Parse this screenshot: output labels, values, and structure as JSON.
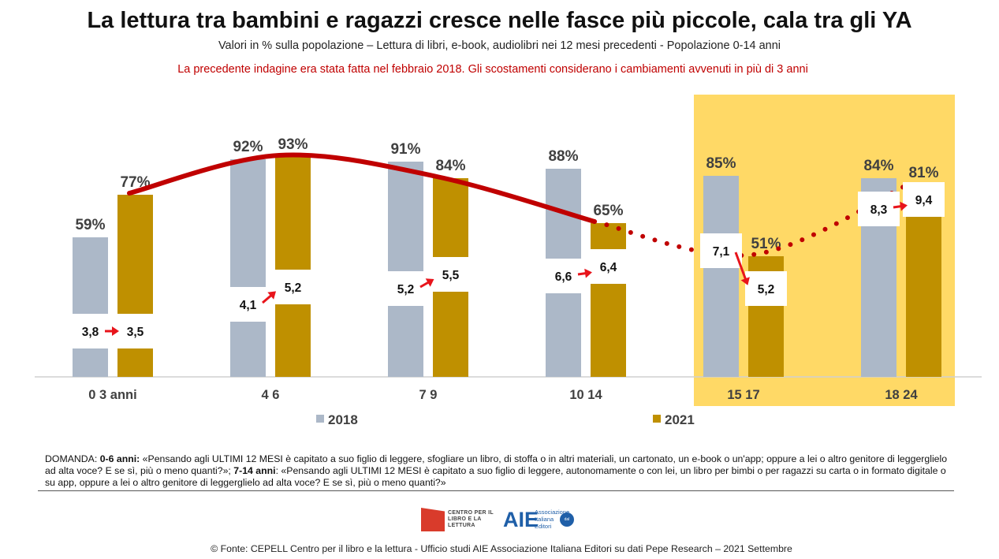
{
  "title": "La lettura tra bambini e ragazzi cresce nelle fasce più piccole, cala tra gli YA",
  "subtitle": "Valori in % sulla popolazione – Lettura di libri, e-book, audiolibri  nei 12 mesi precedenti - Popolazione 0-14 anni",
  "note": "La precedente indagine era stata fatta nel febbraio 2018. Gli scostamenti considerano i cambiamenti avvenuti in più di 3 anni",
  "colors": {
    "series_2018": "#acb8c8",
    "series_2021": "#bf9000",
    "highlight": "#ffd966",
    "trend": "#c00000",
    "arrow": "#e8141b"
  },
  "chart_data": {
    "type": "bar",
    "categories": [
      "0 3 anni",
      "4 6",
      "7 9",
      "10 14",
      "15 17",
      "18 24"
    ],
    "series": [
      {
        "name": "2018",
        "values": [
          59,
          92,
          91,
          88,
          85,
          84
        ],
        "labels": [
          "59%",
          "92%",
          "91%",
          "88%",
          "85%",
          "84%"
        ]
      },
      {
        "name": "2021",
        "values": [
          77,
          93,
          84,
          65,
          51,
          81
        ],
        "labels": [
          "77%",
          "93%",
          "84%",
          "65%",
          "51%",
          "81%"
        ]
      }
    ],
    "ylim": [
      0,
      100
    ],
    "highlighted_categories": [
      "15 17",
      "18 24"
    ],
    "books_read": {
      "2018": [
        3.8,
        4.1,
        5.2,
        6.6,
        7.1,
        8.3
      ],
      "2021": [
        3.5,
        5.2,
        5.5,
        6.4,
        5.2,
        9.4
      ],
      "labels_2018": [
        "3,8",
        "4,1",
        "5,2",
        "6,6",
        "7,1",
        "8,3"
      ],
      "labels_2021": [
        "3,5",
        "5,2",
        "5,5",
        "6,4",
        "5,2",
        "9,4"
      ]
    },
    "trend_line": "2021 values: solid for 0-14, dotted for 15-24",
    "legend": "bottom"
  },
  "question": {
    "prefix": "DOMANDA: ",
    "group1": "0-6 anni:",
    "text1": " «Pensando agli ULTIMI 12 MESI è capitato a suo figlio di leggere, sfogliare un libro, di stoffa o in altri materiali, un cartonato, un e-book o un'app; oppure a lei o altro genitore di leggerglielo ad alta voce? E se sì, più o meno quanti?»; ",
    "group2": "7-14 anni",
    "text2": ": «Pensando agli ULTIMI 12 MESI è capitato a suo figlio di leggere, autonomamente o con lei, un libro per bimbi o per ragazzi su carta o in formato digitale o su app, oppure a lei o altro genitore di leggerglielo ad alta voce? E se sì, più o meno quanti?»"
  },
  "logos": {
    "cepell": "CENTRO PER IL LIBRO E LA LETTURA",
    "aie_big": "AIE",
    "aie_small": "Associazione Italiana Editori",
    "aie_seal": "dal 1869"
  },
  "source": "© Fonte: CEPELL Centro per il libro e la lettura - Ufficio studi AIE Associazione Italiana Editori su dati Pepe Research – 2021 Settembre"
}
